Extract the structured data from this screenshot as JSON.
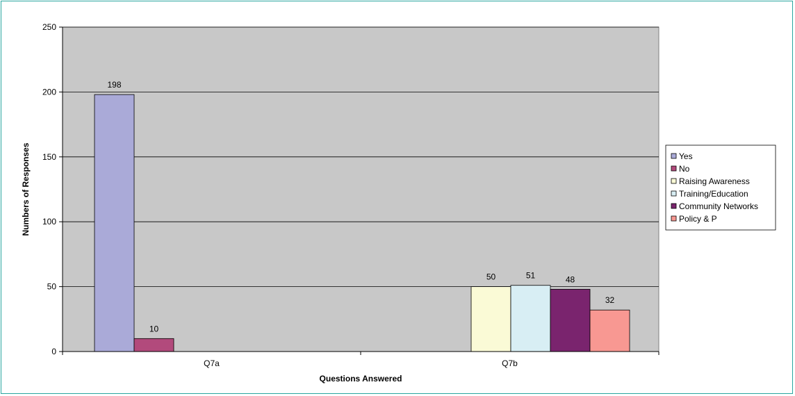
{
  "chart_data": {
    "type": "bar",
    "title": "",
    "xlabel": "Questions Answered",
    "ylabel": "Numbers of Responses",
    "ylim": [
      0,
      250
    ],
    "yticks": [
      0,
      50,
      100,
      150,
      200,
      250
    ],
    "grid": true,
    "legend_position": "right",
    "groups": [
      {
        "category": "Q7a",
        "bars": [
          {
            "series": "Yes",
            "value": 198,
            "label": "198"
          },
          {
            "series": "No",
            "value": 10,
            "label": "10"
          }
        ]
      },
      {
        "category": "Q7b",
        "bars": [
          {
            "series": "Raising Awareness",
            "value": 50,
            "label": "50"
          },
          {
            "series": "Training/Education",
            "value": 51,
            "label": "51"
          },
          {
            "series": "Community Networks",
            "value": 48,
            "label": "48"
          },
          {
            "series": "Policy & P",
            "value": 32,
            "label": "32"
          }
        ]
      }
    ],
    "series": [
      {
        "name": "Yes",
        "color": "#aaaad8"
      },
      {
        "name": "No",
        "color": "#b24a7c"
      },
      {
        "name": "Raising Awareness",
        "color": "#fafad6"
      },
      {
        "name": "Training/Education",
        "color": "#d8eef4"
      },
      {
        "name": "Community Networks",
        "color": "#7a246e"
      },
      {
        "name": "Policy & P",
        "color": "#f89892"
      }
    ],
    "plot_background": "#c8c8c8"
  }
}
